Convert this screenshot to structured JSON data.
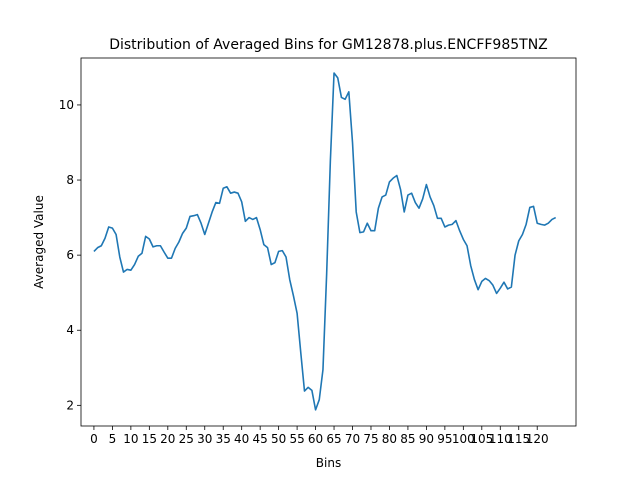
{
  "chart_data": {
    "type": "line",
    "title": "Distribution of Averaged Bins for GM12878.plus.ENCFF985TNZ",
    "xlabel": "Bins",
    "ylabel": "Averaged Value",
    "xlim": [
      -3.5,
      130.5
    ],
    "ylim": [
      1.45,
      11.25
    ],
    "x_ticks": [
      0,
      5,
      10,
      15,
      20,
      25,
      30,
      35,
      40,
      45,
      50,
      55,
      60,
      65,
      70,
      75,
      80,
      85,
      90,
      95,
      100,
      105,
      110,
      115,
      120
    ],
    "y_ticks": [
      2,
      4,
      6,
      8,
      10
    ],
    "grid": false,
    "legend": "none",
    "series": [
      {
        "color": "#1f77b4",
        "x": [
          0,
          1,
          2,
          3,
          4,
          5,
          6,
          7,
          8,
          9,
          10,
          11,
          12,
          13,
          14,
          15,
          16,
          17,
          18,
          19,
          20,
          21,
          22,
          23,
          24,
          25,
          26,
          27,
          28,
          29,
          30,
          31,
          32,
          33,
          34,
          35,
          36,
          37,
          38,
          39,
          40,
          41,
          42,
          43,
          44,
          45,
          46,
          47,
          48,
          49,
          50,
          51,
          52,
          53,
          54,
          55,
          56,
          57,
          58,
          59,
          60,
          61,
          62,
          63,
          64,
          65,
          66,
          67,
          68,
          69,
          70,
          71,
          72,
          73,
          74,
          75,
          76,
          77,
          78,
          79,
          80,
          81,
          82,
          83,
          84,
          85,
          86,
          87,
          88,
          89,
          90,
          91,
          92,
          93,
          94,
          95,
          96,
          97,
          98,
          99,
          100,
          101,
          102,
          103,
          104,
          105,
          106,
          107,
          108,
          109,
          110,
          111,
          112,
          113,
          114,
          115,
          116,
          117,
          118,
          119,
          120,
          121,
          122,
          123,
          124,
          125
        ],
        "values": [
          6.1,
          6.2,
          6.25,
          6.45,
          6.75,
          6.72,
          6.55,
          5.95,
          5.55,
          5.62,
          5.6,
          5.75,
          5.97,
          6.05,
          6.5,
          6.43,
          6.22,
          6.25,
          6.25,
          6.08,
          5.92,
          5.92,
          6.18,
          6.35,
          6.58,
          6.72,
          7.03,
          7.05,
          7.08,
          6.85,
          6.55,
          6.85,
          7.15,
          7.4,
          7.38,
          7.78,
          7.82,
          7.65,
          7.68,
          7.65,
          7.42,
          6.9,
          7.0,
          6.95,
          7.0,
          6.68,
          6.28,
          6.2,
          5.75,
          5.8,
          6.1,
          6.12,
          5.95,
          5.35,
          4.92,
          4.45,
          3.4,
          2.38,
          2.48,
          2.4,
          1.88,
          2.15,
          2.95,
          5.5,
          8.5,
          10.85,
          10.72,
          10.2,
          10.15,
          10.35,
          9.0,
          7.15,
          6.6,
          6.62,
          6.85,
          6.65,
          6.65,
          7.25,
          7.55,
          7.6,
          7.95,
          8.05,
          8.12,
          7.75,
          7.15,
          7.6,
          7.65,
          7.4,
          7.25,
          7.5,
          7.88,
          7.55,
          7.32,
          6.98,
          6.98,
          6.75,
          6.8,
          6.82,
          6.92,
          6.65,
          6.42,
          6.25,
          5.72,
          5.35,
          5.08,
          5.3,
          5.38,
          5.32,
          5.2,
          4.98,
          5.12,
          5.28,
          5.1,
          5.15,
          6.0,
          6.38,
          6.55,
          6.82,
          7.27,
          7.3,
          6.85,
          6.82,
          6.8,
          6.85,
          6.95,
          7.0
        ]
      }
    ]
  }
}
